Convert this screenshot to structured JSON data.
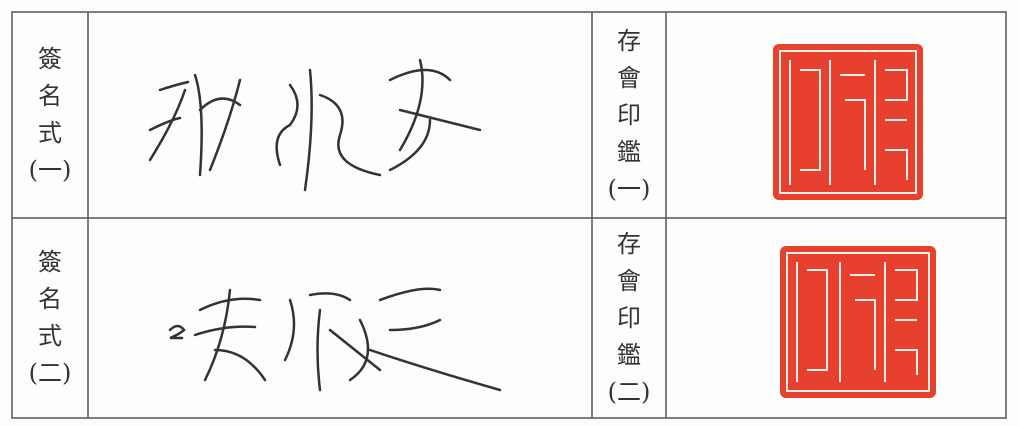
{
  "rows": [
    {
      "signature_label": [
        "簽",
        "名",
        "式",
        "(一)"
      ],
      "seal_label": [
        "存",
        "會",
        "印",
        "鑑",
        "(一)"
      ]
    },
    {
      "signature_label": [
        "簽",
        "名",
        "式",
        "(二)"
      ],
      "seal_label": [
        "存",
        "會",
        "印",
        "鑑",
        "(二)"
      ]
    }
  ]
}
